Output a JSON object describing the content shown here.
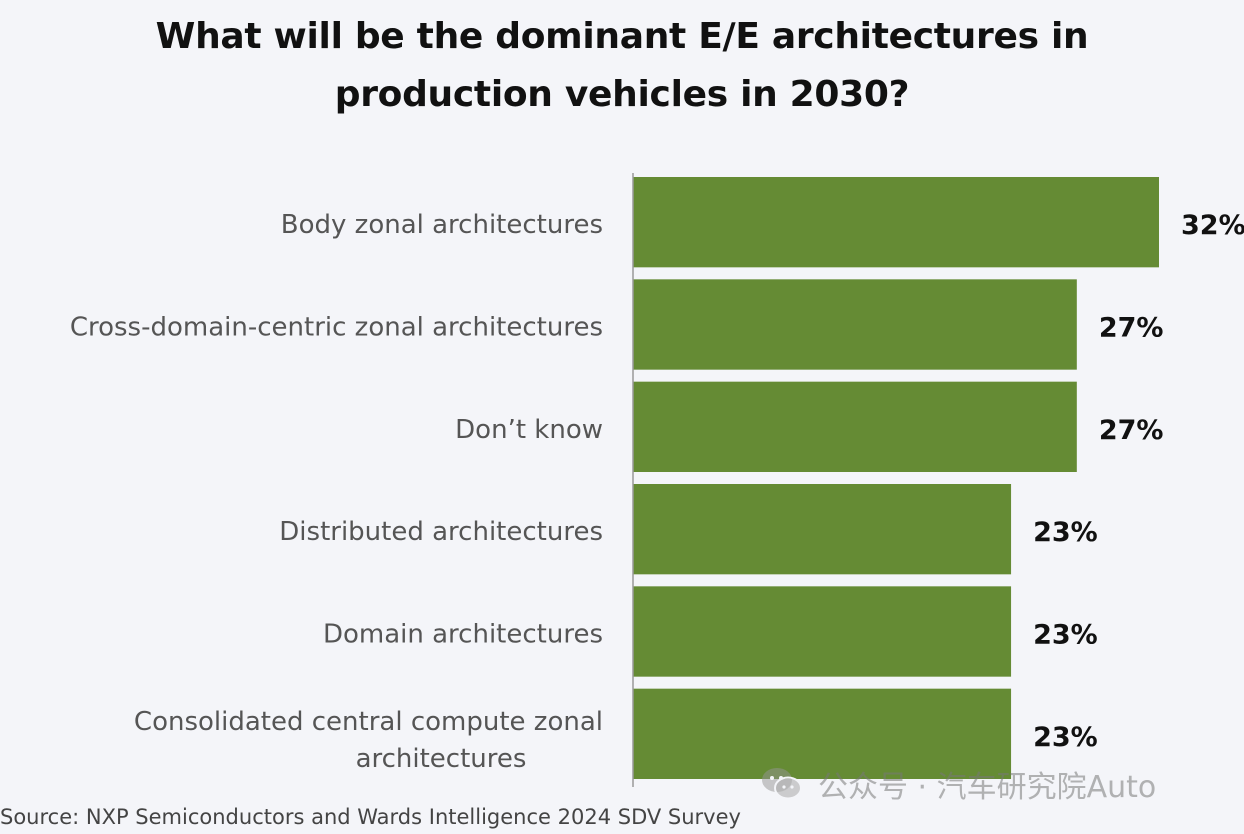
{
  "chart_data": {
    "type": "bar",
    "orientation": "horizontal",
    "title": "What will be the dominant E/E architectures in production vehicles in 2030?",
    "categories": [
      "Body zonal architectures",
      "Cross-domain-centric zonal architectures",
      "Don’t know",
      "Distributed architectures",
      "Domain architectures",
      "Consolidated central compute zonal architectures"
    ],
    "values": [
      32,
      27,
      27,
      23,
      23,
      23
    ],
    "value_labels": [
      "32%",
      "27%",
      "27%",
      "23%",
      "23%",
      "23%"
    ],
    "unit": "%",
    "xlim": [
      0,
      32
    ],
    "grid": false,
    "legend": "none",
    "bar_color": "#658b34"
  },
  "source": "Source: NXP Semiconductors and Wards Intelligence 2024 SDV Survey",
  "watermark": {
    "text": "公众号 · 汽车研究院Auto",
    "icon": "wechat-icon"
  },
  "colors": {
    "background": "#f4f5f9",
    "bar": "#658b34",
    "axis": "#999999"
  }
}
